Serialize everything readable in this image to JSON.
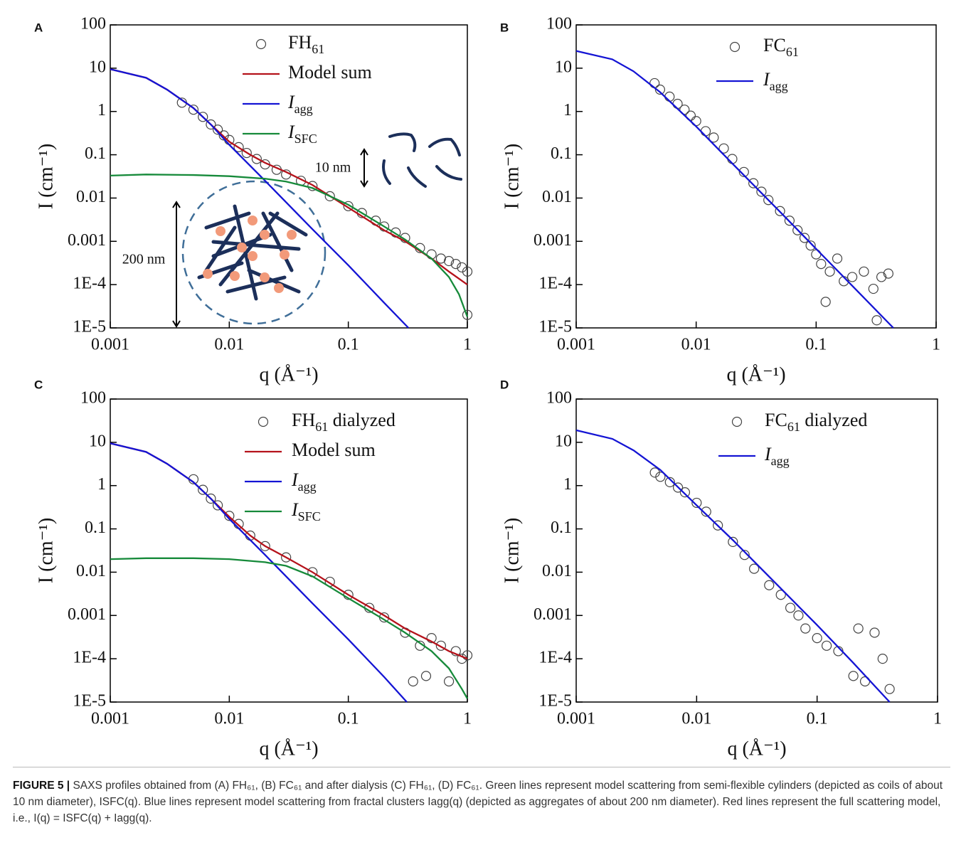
{
  "chart_data": [
    {
      "type": "line",
      "label": "A",
      "xscale": "log",
      "yscale": "log",
      "xlabel": "q (Å⁻¹)",
      "ylabel": "I (cm⁻¹)",
      "xlim": [
        0.001,
        1
      ],
      "ylim": [
        1e-05,
        100
      ],
      "xticks": [
        0.001,
        0.01,
        0.1,
        1
      ],
      "yticks": [
        {
          "value": 1e-05,
          "label": "1E-5"
        },
        {
          "value": 0.0001,
          "label": "1E-4"
        },
        0.001,
        0.01,
        0.1,
        1,
        10,
        100
      ],
      "annotations": [
        "10 nm",
        "200 nm"
      ],
      "series": [
        {
          "name": "FH",
          "subscript": "61",
          "type": "scatter",
          "color": "#444444",
          "x": [
            0.004,
            0.005,
            0.006,
            0.007,
            0.008,
            0.009,
            0.01,
            0.012,
            0.014,
            0.017,
            0.02,
            0.025,
            0.03,
            0.04,
            0.05,
            0.07,
            0.1,
            0.13,
            0.17,
            0.2,
            0.25,
            0.3,
            0.4,
            0.5,
            0.6,
            0.7,
            0.8,
            0.9,
            1,
            1
          ],
          "values": [
            1.6,
            1.1,
            0.75,
            0.5,
            0.38,
            0.28,
            0.22,
            0.15,
            0.11,
            0.08,
            0.06,
            0.045,
            0.035,
            0.025,
            0.019,
            0.011,
            0.0065,
            0.0045,
            0.003,
            0.0022,
            0.0016,
            0.0012,
            0.0007,
            0.0005,
            0.0004,
            0.00035,
            0.0003,
            0.00025,
            0.0002,
            2e-05
          ]
        },
        {
          "name": "Model sum",
          "type": "line",
          "color": "#b5121b",
          "x": [
            0.001,
            0.002,
            0.003,
            0.005,
            0.007,
            0.01,
            0.015,
            0.02,
            0.03,
            0.05,
            0.1,
            0.2,
            0.3,
            0.5,
            0.7,
            1
          ],
          "values": [
            9.5,
            6,
            3.2,
            1.2,
            0.5,
            0.2,
            0.1,
            0.065,
            0.04,
            0.02,
            0.006,
            0.0018,
            0.001,
            0.0004,
            0.0002,
            0.0001
          ]
        },
        {
          "name": "I",
          "subscript": "agg",
          "type": "line",
          "color": "#1414d4",
          "x": [
            0.001,
            0.002,
            0.003,
            0.005,
            0.007,
            0.01,
            0.02,
            0.05,
            0.1,
            0.2,
            0.32
          ],
          "values": [
            9.5,
            6,
            3.2,
            1.2,
            0.5,
            0.17,
            0.025,
            0.0019,
            0.00028,
            3.8e-05,
            1e-05
          ]
        },
        {
          "name": "I",
          "subscript": "SFC",
          "type": "line",
          "color": "#168a3a",
          "x": [
            0.001,
            0.002,
            0.005,
            0.01,
            0.02,
            0.03,
            0.05,
            0.1,
            0.2,
            0.3,
            0.5,
            0.7,
            0.85,
            1
          ],
          "values": [
            0.033,
            0.035,
            0.034,
            0.032,
            0.028,
            0.024,
            0.017,
            0.007,
            0.0022,
            0.0011,
            0.0004,
            0.00015,
            6e-05,
            1.8e-05
          ]
        }
      ]
    },
    {
      "type": "line",
      "label": "B",
      "xscale": "log",
      "yscale": "log",
      "xlabel": "q (Å⁻¹)",
      "ylabel": "I (cm⁻¹)",
      "xlim": [
        0.001,
        1
      ],
      "ylim": [
        1e-05,
        100
      ],
      "xticks": [
        0.001,
        0.01,
        0.1,
        1
      ],
      "yticks": [
        {
          "value": 1e-05,
          "label": "1E-5"
        },
        {
          "value": 0.0001,
          "label": "1E-4"
        },
        0.001,
        0.01,
        0.1,
        1,
        10,
        100
      ],
      "series": [
        {
          "name": "FC",
          "subscript": "61",
          "type": "scatter",
          "color": "#444444",
          "x": [
            0.0045,
            0.005,
            0.006,
            0.007,
            0.008,
            0.009,
            0.01,
            0.012,
            0.014,
            0.017,
            0.02,
            0.025,
            0.03,
            0.035,
            0.04,
            0.05,
            0.06,
            0.07,
            0.08,
            0.09,
            0.1,
            0.11,
            0.12,
            0.13,
            0.15,
            0.17,
            0.2,
            0.25,
            0.3,
            0.35,
            0.4,
            0.32
          ],
          "values": [
            4.5,
            3.2,
            2.2,
            1.5,
            1.1,
            0.8,
            0.6,
            0.35,
            0.25,
            0.14,
            0.08,
            0.04,
            0.022,
            0.014,
            0.009,
            0.005,
            0.003,
            0.0018,
            0.0012,
            0.0008,
            0.0005,
            0.0003,
            4e-05,
            0.0002,
            0.0004,
            0.00012,
            0.00015,
            0.0002,
            8e-05,
            0.00015,
            0.00018,
            1.5e-05
          ]
        },
        {
          "name": "I",
          "subscript": "agg",
          "type": "line",
          "color": "#1414d4",
          "x": [
            0.001,
            0.002,
            0.003,
            0.005,
            0.01,
            0.02,
            0.05,
            0.1,
            0.2,
            0.44
          ],
          "values": [
            25,
            16,
            8.5,
            2.8,
            0.45,
            0.063,
            0.0048,
            0.00067,
            9.4e-05,
            1e-05
          ]
        }
      ]
    },
    {
      "type": "line",
      "label": "C",
      "xscale": "log",
      "yscale": "log",
      "xlabel": "q (Å⁻¹)",
      "ylabel": "I (cm⁻¹)",
      "xlim": [
        0.001,
        1
      ],
      "ylim": [
        1e-05,
        100
      ],
      "xticks": [
        0.001,
        0.01,
        0.1,
        1
      ],
      "yticks": [
        {
          "value": 1e-05,
          "label": "1E-5"
        },
        {
          "value": 0.0001,
          "label": "1E-4"
        },
        0.001,
        0.01,
        0.1,
        1,
        10,
        100
      ],
      "series": [
        {
          "name": "FH",
          "subscript": "61",
          "suffix": " dialyzed",
          "type": "scatter",
          "color": "#444444",
          "x": [
            0.005,
            0.006,
            0.007,
            0.008,
            0.01,
            0.012,
            0.015,
            0.02,
            0.03,
            0.05,
            0.07,
            0.1,
            0.15,
            0.2,
            0.3,
            0.35,
            0.4,
            0.45,
            0.5,
            0.6,
            0.7,
            0.8,
            0.9,
            1
          ],
          "values": [
            1.4,
            0.8,
            0.5,
            0.35,
            0.2,
            0.13,
            0.07,
            0.04,
            0.022,
            0.01,
            0.006,
            0.003,
            0.0015,
            0.0009,
            0.0004,
            3e-05,
            0.0002,
            4e-05,
            0.0003,
            0.0002,
            3e-05,
            0.00015,
            0.0001,
            0.00012
          ]
        },
        {
          "name": "Model sum",
          "type": "line",
          "color": "#b5121b",
          "x": [
            0.001,
            0.002,
            0.003,
            0.005,
            0.007,
            0.01,
            0.015,
            0.02,
            0.03,
            0.05,
            0.1,
            0.2,
            0.3,
            0.5,
            0.7,
            1
          ],
          "values": [
            9.5,
            6,
            3.2,
            1.2,
            0.5,
            0.19,
            0.07,
            0.04,
            0.022,
            0.01,
            0.003,
            0.001,
            0.0005,
            0.00025,
            0.00015,
            0.0001
          ]
        },
        {
          "name": "I",
          "subscript": "agg",
          "type": "line",
          "color": "#1414d4",
          "x": [
            0.001,
            0.002,
            0.003,
            0.005,
            0.007,
            0.01,
            0.02,
            0.05,
            0.1,
            0.2,
            0.31
          ],
          "values": [
            9.5,
            6,
            3.2,
            1.2,
            0.5,
            0.17,
            0.025,
            0.0019,
            0.00028,
            3.8e-05,
            1e-05
          ]
        },
        {
          "name": "I",
          "subscript": "SFC",
          "type": "line",
          "color": "#168a3a",
          "x": [
            0.001,
            0.002,
            0.005,
            0.01,
            0.02,
            0.03,
            0.05,
            0.1,
            0.2,
            0.3,
            0.5,
            0.7,
            0.9,
            1
          ],
          "values": [
            0.02,
            0.021,
            0.021,
            0.02,
            0.017,
            0.014,
            0.008,
            0.0025,
            0.0008,
            0.0004,
            0.00015,
            6e-05,
            2e-05,
            1.2e-05
          ]
        }
      ]
    },
    {
      "type": "line",
      "label": "D",
      "xscale": "log",
      "yscale": "log",
      "xlabel": "q (Å⁻¹)",
      "ylabel": "I (cm⁻¹)",
      "xlim": [
        0.001,
        1
      ],
      "ylim": [
        1e-05,
        100
      ],
      "xticks": [
        0.001,
        0.01,
        0.1,
        1
      ],
      "yticks": [
        {
          "value": 1e-05,
          "label": "1E-5"
        },
        {
          "value": 0.0001,
          "label": "1E-4"
        },
        0.001,
        0.01,
        0.1,
        1,
        10,
        100
      ],
      "series": [
        {
          "name": "FC",
          "subscript": "61",
          "suffix": " dialyzed",
          "type": "scatter",
          "color": "#444444",
          "x": [
            0.0045,
            0.005,
            0.006,
            0.007,
            0.008,
            0.01,
            0.012,
            0.015,
            0.02,
            0.025,
            0.03,
            0.04,
            0.05,
            0.06,
            0.07,
            0.08,
            0.1,
            0.12,
            0.15,
            0.2,
            0.22,
            0.25,
            0.3,
            0.35,
            0.4
          ],
          "values": [
            2,
            1.6,
            1.2,
            0.9,
            0.7,
            0.4,
            0.25,
            0.12,
            0.05,
            0.025,
            0.012,
            0.005,
            0.003,
            0.0015,
            0.001,
            0.0005,
            0.0003,
            0.0002,
            0.00015,
            4e-05,
            0.0005,
            3e-05,
            0.0004,
            0.0001,
            2e-05
          ]
        },
        {
          "name": "I",
          "subscript": "agg",
          "type": "line",
          "color": "#1414d4",
          "x": [
            0.001,
            0.002,
            0.003,
            0.005,
            0.01,
            0.02,
            0.05,
            0.1,
            0.2,
            0.4
          ],
          "values": [
            19,
            12,
            6.5,
            2.3,
            0.35,
            0.055,
            0.0042,
            0.0006,
            8e-05,
            1e-05
          ]
        }
      ]
    }
  ],
  "caption": {
    "label": "FIGURE 5 |",
    "text": "SAXS profiles obtained from (A) FH₆₁, (B) FC₆₁ and after dialysis (C) FH₆₁, (D) FC₆₁. Green lines represent model scattering from semi-flexible cylinders (depicted as coils of about 10 nm diameter), ISFC(q). Blue lines represent model scattering from fractal clusters Iagg(q) (depicted as aggregates of about 200 nm diameter). Red lines represent the full scattering model, i.e., I(q) = ISFC(q) + Iagg(q)."
  }
}
